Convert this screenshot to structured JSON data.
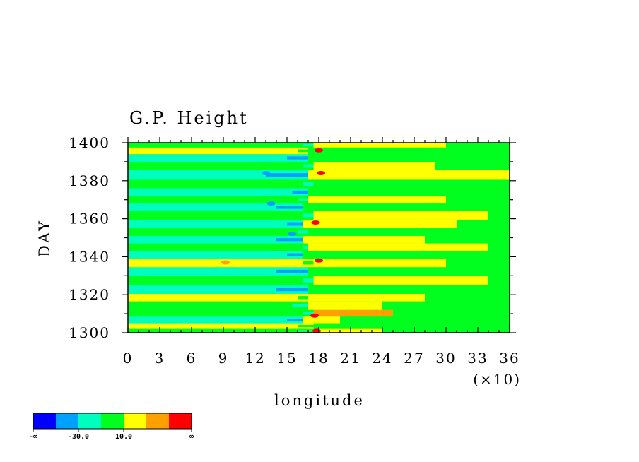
{
  "chart_data": {
    "type": "heatmap",
    "title": "G.P. Height",
    "xlabel": "longitude",
    "x_multiplier_label": "(×10)",
    "ylabel": "DAY",
    "xlim": [
      0,
      36
    ],
    "ylim": [
      1300,
      1400
    ],
    "x_ticks": [
      "0",
      "3",
      "6",
      "9",
      "12",
      "15",
      "18",
      "21",
      "24",
      "27",
      "30",
      "33",
      "36"
    ],
    "y_ticks": [
      "1300",
      "1320",
      "1340",
      "1360",
      "1380",
      "1400"
    ],
    "colorbar": {
      "colors": [
        "#0000ff",
        "#00a0ff",
        "#00ffbf",
        "#00ff1e",
        "#ffff00",
        "#ffa000",
        "#ff0000"
      ],
      "labels": [
        "-∞",
        "-30.0",
        "10.0",
        "∞"
      ]
    },
    "field_bands": [
      {
        "day": 1301,
        "level": 3,
        "x": [
          16,
          18,
          24
        ],
        "level_east": 4
      },
      {
        "day": 1303,
        "level": 4,
        "x": [
          16,
          17.5,
          26
        ],
        "level_east": 3
      },
      {
        "day": 1307,
        "level": 2,
        "x": [
          15,
          16.5,
          20
        ],
        "level_east": 4
      },
      {
        "day": 1310,
        "level": 3,
        "x": [
          16.5,
          17.5,
          25
        ],
        "level_east": 5
      },
      {
        "day": 1314,
        "level": 3,
        "x": [
          15.5,
          17,
          24
        ],
        "level_east": 4
      },
      {
        "day": 1319,
        "level": 4,
        "x": [
          16,
          17,
          28
        ],
        "level_east": 4
      },
      {
        "day": 1322,
        "level": 2,
        "x": [
          14,
          17,
          30
        ],
        "level_east": 3
      },
      {
        "day": 1328,
        "level": 3,
        "x": [
          16.5,
          17.5,
          34
        ],
        "level_east": 4
      },
      {
        "day": 1332,
        "level": 2,
        "x": [
          14,
          17,
          30
        ],
        "level_east": 3
      },
      {
        "day": 1337,
        "level": 4,
        "x": [
          16.5,
          17.5,
          30
        ],
        "level_east": 4
      },
      {
        "day": 1341,
        "level": 2,
        "x": [
          15,
          16.5,
          33
        ],
        "level_east": 3
      },
      {
        "day": 1345,
        "level": 3,
        "x": [
          16.5,
          17,
          34
        ],
        "level_east": 4
      },
      {
        "day": 1349,
        "level": 2,
        "x": [
          14,
          16.5,
          28
        ],
        "level_east": 4
      },
      {
        "day": 1353,
        "level": 3,
        "x": [
          16,
          17,
          33
        ],
        "level_east": 3
      },
      {
        "day": 1357,
        "level": 2,
        "x": [
          15,
          16.5,
          31
        ],
        "level_east": 4
      },
      {
        "day": 1362,
        "level": 3,
        "x": [
          16.5,
          17.5,
          34
        ],
        "level_east": 4
      },
      {
        "day": 1366,
        "level": 2,
        "x": [
          14,
          16.5,
          25
        ],
        "level_east": 3
      },
      {
        "day": 1370,
        "level": 3,
        "x": [
          16,
          17,
          30
        ],
        "level_east": 4
      },
      {
        "day": 1374,
        "level": 2,
        "x": [
          15.5,
          17,
          30
        ],
        "level_east": 3
      },
      {
        "day": 1378,
        "level": 3,
        "x": [
          16.5,
          17.5,
          24
        ],
        "level_east": 3
      },
      {
        "day": 1383,
        "level": 2,
        "x": [
          13,
          17,
          36
        ],
        "level_east": 4
      },
      {
        "day": 1388,
        "level": 3,
        "x": [
          16.5,
          17.5,
          29
        ],
        "level_east": 4
      },
      {
        "day": 1392,
        "level": 2,
        "x": [
          15,
          17,
          33
        ],
        "level_east": 3
      },
      {
        "day": 1396,
        "level": 4,
        "x": [
          16,
          17,
          27
        ],
        "level_east": 3
      },
      {
        "day": 1399,
        "level": 3,
        "x": [
          16.5,
          17.5,
          30
        ],
        "level_east": 4
      }
    ],
    "extremes": [
      {
        "day": 1301,
        "x": 17.8,
        "level": 6
      },
      {
        "day": 1309,
        "x": 17.6,
        "level": 6
      },
      {
        "day": 1338,
        "x": 18.0,
        "level": 6
      },
      {
        "day": 1358,
        "x": 17.7,
        "level": 6
      },
      {
        "day": 1384,
        "x": 18.2,
        "level": 6
      },
      {
        "day": 1396,
        "x": 18.0,
        "level": 6
      },
      {
        "day": 1368,
        "x": 13.5,
        "level": 1
      },
      {
        "day": 1352,
        "x": 15.5,
        "level": 1
      },
      {
        "day": 1384,
        "x": 13.0,
        "level": 1
      },
      {
        "day": 1337,
        "x": 9.2,
        "level": 5
      }
    ]
  }
}
